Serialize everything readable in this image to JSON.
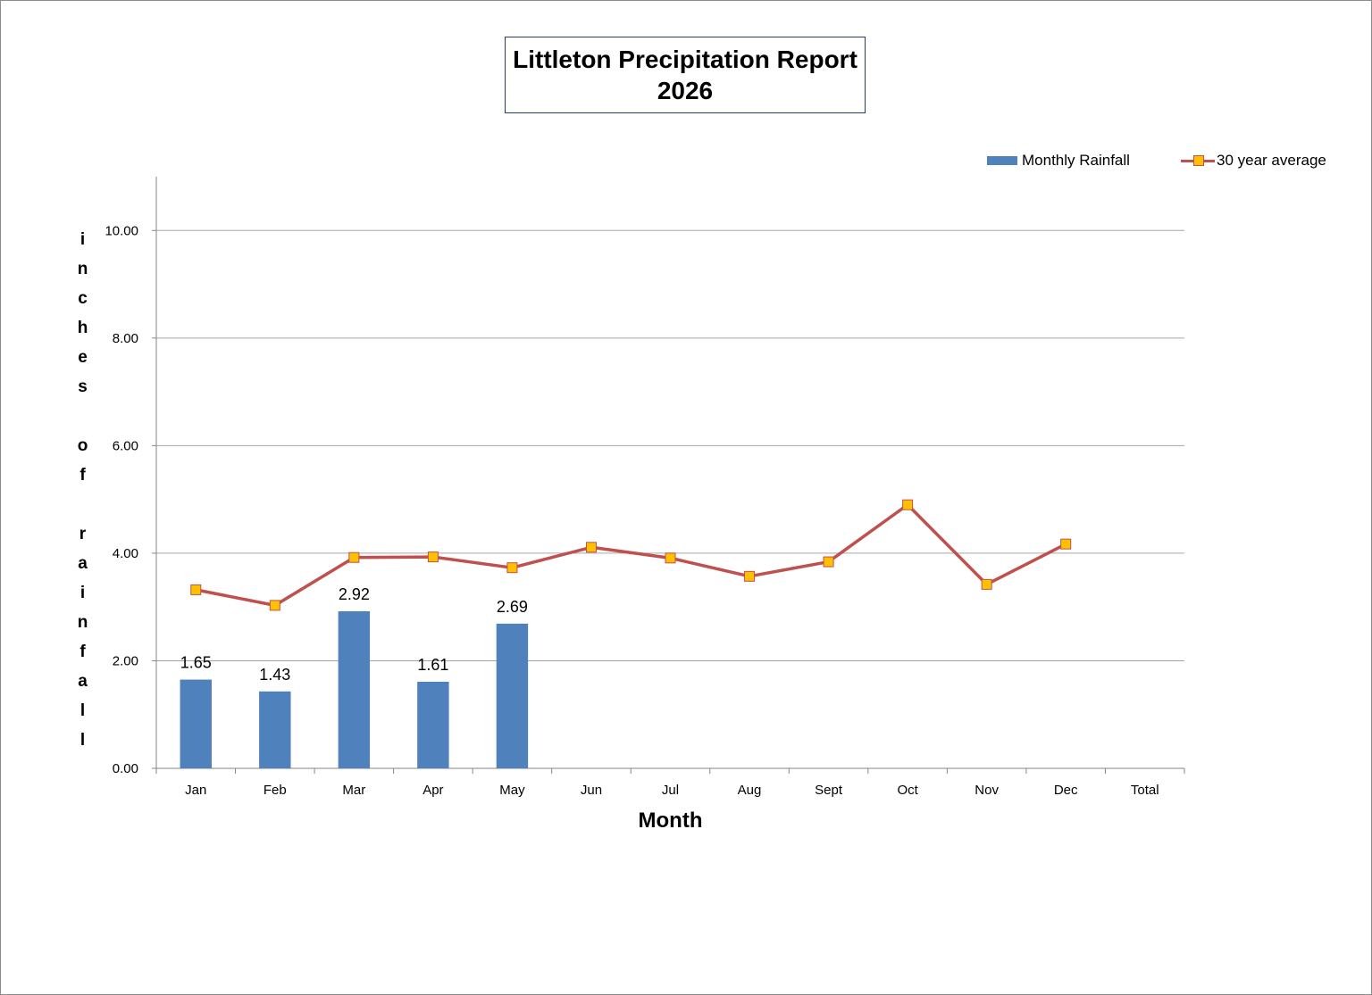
{
  "chart_data": {
    "type": "bar",
    "title_lines": [
      "Littleton Precipitation Report",
      "2026"
    ],
    "xlabel": "Month",
    "ylabel": "inches of rainfall",
    "categories": [
      "Jan",
      "Feb",
      "Mar",
      "Apr",
      "May",
      "Jun",
      "Jul",
      "Aug",
      "Sept",
      "Oct",
      "Nov",
      "Dec",
      "Total"
    ],
    "ylim": [
      0,
      11
    ],
    "yticks": [
      0,
      2,
      4,
      6,
      8,
      10
    ],
    "ytick_labels": [
      "0.00",
      "2.00",
      "4.00",
      "6.00",
      "8.00",
      "10.00"
    ],
    "grid": true,
    "legend_position": "top-right",
    "series": [
      {
        "name": "Monthly Rainfall",
        "type": "bar",
        "color": "#4f81bd",
        "values": [
          1.65,
          1.43,
          2.92,
          1.61,
          2.69,
          null,
          null,
          null,
          null,
          null,
          null,
          null,
          null
        ],
        "data_labels": [
          "1.65",
          "1.43",
          "2.92",
          "1.61",
          "2.69"
        ]
      },
      {
        "name": "30 year average",
        "type": "line",
        "color": "#c0504d",
        "marker_color": "#ffc000",
        "values": [
          3.32,
          3.03,
          3.92,
          3.93,
          3.73,
          4.11,
          3.91,
          3.57,
          3.84,
          4.9,
          3.42,
          4.17,
          null
        ]
      }
    ]
  }
}
